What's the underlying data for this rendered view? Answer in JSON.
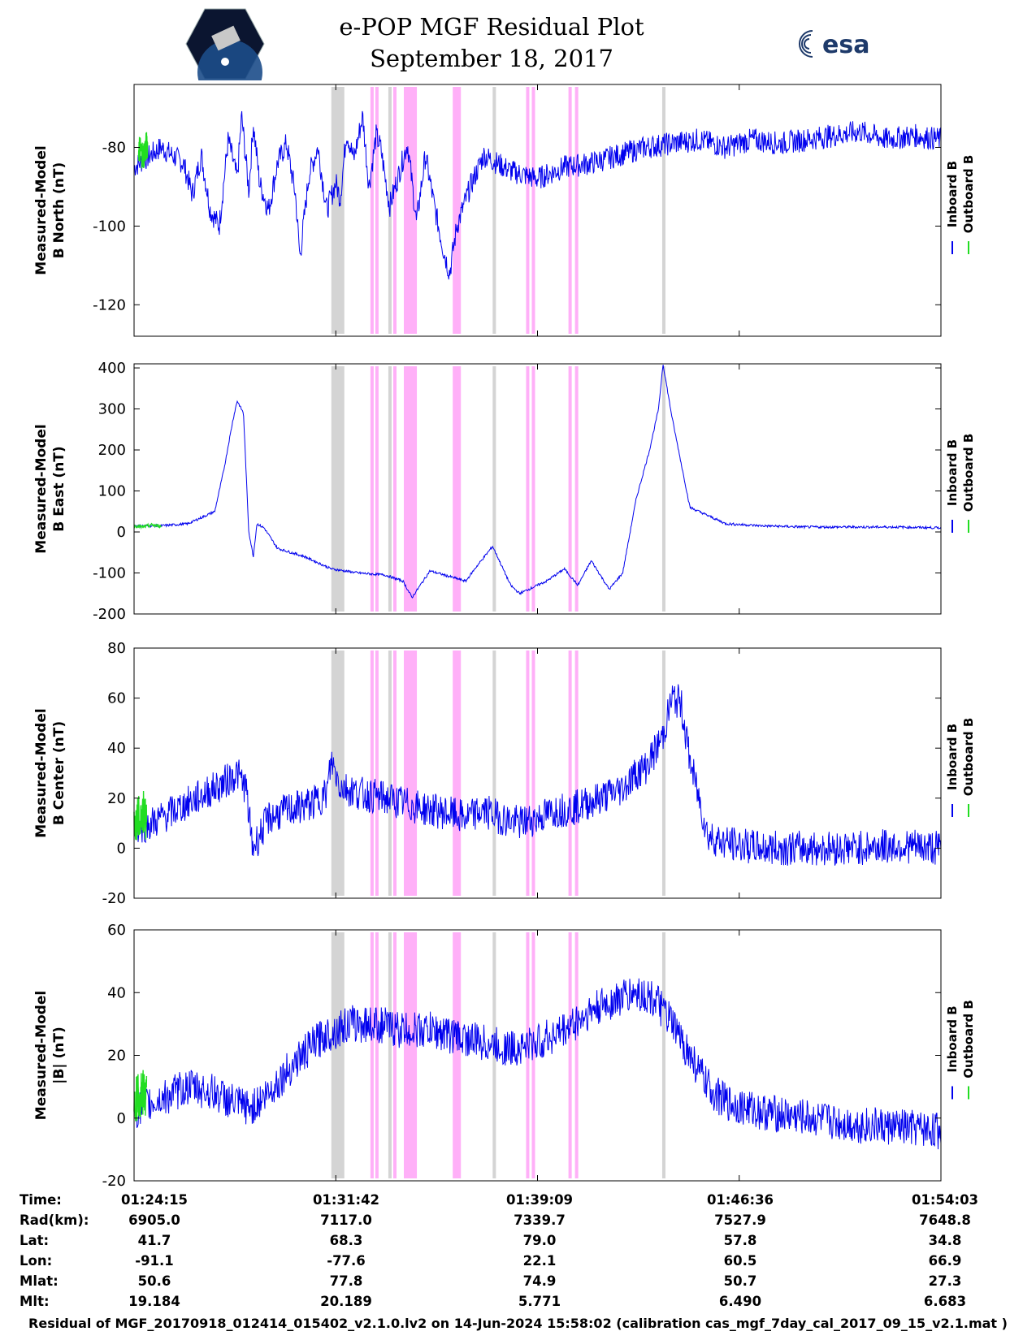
{
  "header": {
    "title": "e-POP MGF Residual Plot",
    "date": "September 18, 2017",
    "logo_left": "CASSIOPE",
    "logo_right": "esa"
  },
  "legend": [
    "Inboard B",
    "Outboard B"
  ],
  "colors": {
    "inboard": "#0000ee",
    "outboard": "#22dd22",
    "gray_band": "#d4d4d4",
    "magenta_band": "#ffb0f8"
  },
  "chart_data": [
    {
      "type": "line",
      "ylabel": [
        "Measured-Model",
        "B North (nT)"
      ],
      "ylim": [
        -128,
        -64
      ],
      "yticks": [
        -80,
        -100,
        -120
      ],
      "series": [
        {
          "name": "Inboard B",
          "x": [
            0,
            30,
            55,
            65,
            75,
            85,
            95,
            105,
            115,
            120,
            128,
            133,
            140,
            150,
            160,
            170,
            180,
            185,
            195,
            205,
            215,
            225,
            230,
            237,
            245,
            255,
            262,
            270,
            275,
            285,
            295,
            305,
            315,
            325,
            335,
            345,
            352,
            360,
            375,
            390,
            420,
            450,
            480,
            510,
            540,
            570,
            600,
            630,
            660,
            690,
            720,
            750,
            780,
            810,
            840,
            870,
            900
          ],
          "y": [
            -85,
            -80,
            -84,
            -92,
            -82,
            -96,
            -100,
            -78,
            -88,
            -72,
            -91,
            -74,
            -89,
            -96,
            -84,
            -79,
            -92,
            -108,
            -87,
            -80,
            -96,
            -89,
            -93,
            -76,
            -83,
            -72,
            -90,
            -77,
            -80,
            -95,
            -87,
            -79,
            -99,
            -82,
            -95,
            -106,
            -112,
            -100,
            -90,
            -82,
            -86,
            -88,
            -85,
            -84,
            -82,
            -80,
            -79,
            -78,
            -80,
            -78,
            -79,
            -78,
            -77,
            -76,
            -78,
            -77,
            -78
          ]
        },
        {
          "name": "Outboard B",
          "x": [
            5,
            10,
            15
          ],
          "y": [
            -80,
            -82,
            -79
          ]
        }
      ]
    },
    {
      "type": "line",
      "ylabel": [
        "Measured-Model",
        "B East (nT)"
      ],
      "ylim": [
        -200,
        410
      ],
      "yticks": [
        400,
        300,
        200,
        100,
        0,
        -100,
        -200
      ],
      "series": [
        {
          "name": "Inboard B",
          "x": [
            0,
            30,
            60,
            90,
            100,
            110,
            115,
            122,
            128,
            133,
            137,
            145,
            160,
            190,
            220,
            250,
            280,
            300,
            310,
            330,
            370,
            380,
            400,
            420,
            430,
            460,
            480,
            495,
            510,
            530,
            545,
            560,
            575,
            585,
            590,
            600,
            620,
            640,
            660,
            700,
            750,
            800,
            850,
            900
          ],
          "y": [
            15,
            15,
            20,
            50,
            150,
            270,
            320,
            290,
            0,
            -60,
            20,
            10,
            -40,
            -60,
            -90,
            -100,
            -105,
            -120,
            -160,
            -95,
            -120,
            -90,
            -35,
            -130,
            -150,
            -120,
            -90,
            -130,
            -70,
            -140,
            -100,
            80,
            200,
            300,
            410,
            280,
            60,
            40,
            20,
            15,
            12,
            12,
            12,
            10
          ]
        },
        {
          "name": "Outboard B",
          "x": [
            0,
            10,
            20,
            30
          ],
          "y": [
            15,
            12,
            17,
            14
          ]
        }
      ]
    },
    {
      "type": "line",
      "ylabel": [
        "Measured-Model",
        "B Center (nT)"
      ],
      "ylim": [
        -20,
        80
      ],
      "yticks": [
        80,
        60,
        40,
        20,
        0,
        -20
      ],
      "series": [
        {
          "name": "Inboard B",
          "x": [
            0,
            20,
            40,
            60,
            80,
            100,
            115,
            125,
            132,
            140,
            150,
            170,
            200,
            215,
            220,
            230,
            250,
            280,
            300,
            320,
            350,
            370,
            390,
            410,
            430,
            450,
            470,
            490,
            520,
            545,
            560,
            570,
            580,
            590,
            600,
            610,
            620,
            640,
            660,
            700,
            750,
            800,
            850,
            900
          ],
          "y": [
            8,
            10,
            14,
            18,
            22,
            26,
            30,
            24,
            0,
            5,
            12,
            15,
            18,
            22,
            35,
            25,
            22,
            20,
            18,
            16,
            14,
            12,
            15,
            12,
            10,
            12,
            15,
            16,
            20,
            24,
            30,
            32,
            38,
            45,
            60,
            58,
            35,
            5,
            2,
            0,
            0,
            0,
            1,
            0
          ]
        },
        {
          "name": "Outboard B",
          "x": [
            0,
            10,
            14
          ],
          "y": [
            10,
            14,
            12
          ]
        }
      ]
    },
    {
      "type": "line",
      "ylabel": [
        "Measured-Model",
        "|B| (nT)"
      ],
      "ylim": [
        -20,
        60
      ],
      "yticks": [
        60,
        40,
        20,
        0,
        -20
      ],
      "series": [
        {
          "name": "Inboard B",
          "x": [
            0,
            30,
            60,
            90,
            110,
            130,
            150,
            180,
            210,
            240,
            270,
            300,
            330,
            360,
            390,
            420,
            450,
            480,
            510,
            540,
            560,
            580,
            600,
            620,
            640,
            660,
            700,
            750,
            800,
            850,
            900
          ],
          "y": [
            2,
            6,
            10,
            8,
            5,
            3,
            8,
            18,
            26,
            30,
            30,
            28,
            28,
            26,
            24,
            22,
            24,
            28,
            34,
            38,
            40,
            38,
            30,
            20,
            10,
            5,
            2,
            0,
            -2,
            -3,
            -4
          ]
        },
        {
          "name": "Outboard B",
          "x": [
            0,
            8,
            14
          ],
          "y": [
            6,
            8,
            7
          ]
        }
      ]
    }
  ],
  "band_positions": {
    "gray": [
      [
        242,
        258
      ],
      [
        312,
        316
      ],
      [
        440,
        444
      ],
      [
        648,
        652
      ]
    ],
    "magenta": [
      [
        290,
        294
      ],
      [
        296,
        300
      ],
      [
        318,
        322
      ],
      [
        331,
        347
      ],
      [
        391,
        401
      ],
      [
        481,
        485
      ],
      [
        488,
        492
      ],
      [
        533,
        537
      ],
      [
        541,
        545
      ]
    ]
  },
  "footer": {
    "labels": [
      "Time:",
      "Rad(km):",
      "Lat:",
      "Lon:",
      "Mlat:",
      "Mlt:"
    ],
    "columns": [
      [
        "01:24:15",
        "6905.0",
        "41.7",
        "-91.1",
        "50.6",
        "19.184"
      ],
      [
        "01:31:42",
        "7117.0",
        "68.3",
        "-77.6",
        "77.8",
        "20.189"
      ],
      [
        "01:39:09",
        "7339.7",
        "79.0",
        "22.1",
        "74.9",
        "5.771"
      ],
      [
        "01:46:36",
        "7527.9",
        "57.8",
        "60.5",
        "50.7",
        "6.490"
      ],
      [
        "01:54:03",
        "7648.8",
        "34.8",
        "66.9",
        "27.3",
        "6.683"
      ]
    ],
    "caption": "Residual of MGF_20170918_012414_015402_v2.1.0.lv2 on 14-Jun-2024 15:58:02 (calibration cas_mgf_7day_cal_2017_09_15_v2.1.mat )"
  }
}
